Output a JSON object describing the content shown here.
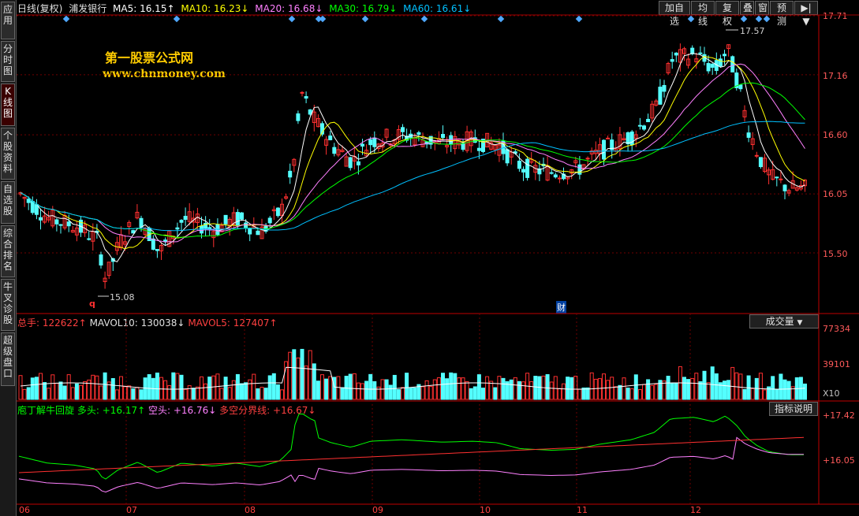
{
  "sidebar": {
    "tabs": [
      {
        "label": "应用",
        "active": false
      },
      {
        "label": "分时图",
        "active": false
      },
      {
        "label": "K线图",
        "active": true
      },
      {
        "label": "个股资料",
        "active": false
      },
      {
        "label": "自选股",
        "active": false
      },
      {
        "label": "综合排名",
        "active": false
      },
      {
        "label": "牛叉诊股",
        "active": false
      },
      {
        "label": "超级盘口",
        "active": false
      }
    ]
  },
  "header": {
    "period": "日线(复权)",
    "stock": "浦发银行",
    "ma5": "MA5: 16.15↑",
    "ma10": "MA10: 16.23↓",
    "ma20": "MA20: 16.68↓",
    "ma30": "MA30: 16.79↓",
    "ma60": "MA60: 16.61↓"
  },
  "toolbar": {
    "add": "加自选",
    "avg": "均线",
    "fq": "复权",
    "overlay": "叠",
    "window": "窗",
    "forecast": "预测",
    "menu": "▶|▼"
  },
  "watermark": {
    "line1": "第一股票公式网",
    "line2": "www.chnmoney.com"
  },
  "price_axis": [
    "17.71",
    "17.16",
    "16.60",
    "16.05",
    "15.50"
  ],
  "annotations": {
    "high": "17.57",
    "low": "15.08",
    "q": "q",
    "cai": "财"
  },
  "volume": {
    "total": "总手: 122622↑",
    "mavol10": "MAVOL10: 130038↓",
    "mavol5": "MAVOL5: 127407↑",
    "selector": "成交量",
    "axis": [
      "77334",
      "39101",
      "X10"
    ]
  },
  "indicator": {
    "name": "庖丁解牛回旋",
    "long": "多头: +16.17↑",
    "short": "空头: +16.76↓",
    "divide": "多空分界线: +16.67↓",
    "button": "指标说明",
    "axis": [
      "+17.42",
      "+16.05"
    ]
  },
  "x_axis": [
    "06",
    "07",
    "08",
    "09",
    "10",
    "11",
    "12"
  ],
  "colors": {
    "up": "#ff3030",
    "down": "#54ffff",
    "ma5": "#ffffff",
    "ma10": "#ffff00",
    "ma20": "#ff80ff",
    "ma30": "#00ff00",
    "ma60": "#00c0ff"
  }
}
